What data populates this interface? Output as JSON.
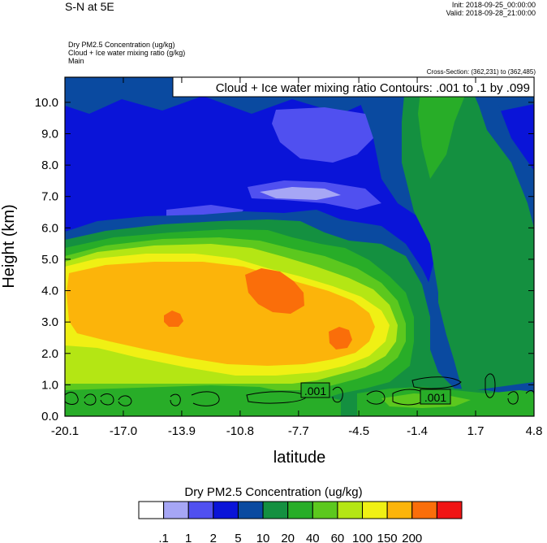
{
  "header": {
    "title": "S-N at 5E",
    "init": "Init: 2018-09-25_00:00:00",
    "valid": "Valid: 2018-09-28_21:00:00",
    "field1": "Dry PM2.5 Concentration   (ug/kg)",
    "field2": "Cloud + Ice water mixing ratio   (g/kg)",
    "field3": "Main",
    "cross_section": "Cross-Section: (362,231) to (362,485)"
  },
  "chart_data": {
    "type": "heatmap",
    "title": "S-N at 5E",
    "xlabel": "latitude",
    "ylabel": "Height (km)",
    "x_ticks": [
      "-20.1",
      "-17.0",
      "-13.9",
      "-10.8",
      "-7.7",
      "-4.5",
      "-1.4",
      "1.7",
      "4.8"
    ],
    "y_ticks": [
      "0.0",
      "1.0",
      "2.0",
      "3.0",
      "4.0",
      "5.0",
      "6.0",
      "7.0",
      "8.0",
      "9.0",
      "10.0"
    ],
    "xlim": [
      -20.1,
      4.8
    ],
    "ylim": [
      0.0,
      10.8
    ],
    "contour_info": "Cloud + Ice water mixing ratio Contours: .001 to .1 by .099",
    "contour_labels": [
      ".001",
      ".001"
    ],
    "colorbar_title": "Dry PM2.5 Concentration  (ug/kg)",
    "colorbar_levels": [
      ".1",
      "1",
      "2",
      "5",
      "10",
      "20",
      "40",
      "60",
      "100",
      "150",
      "200"
    ],
    "colorbar_colors": [
      "#ffffff",
      "#a6a6f5",
      "#5050f0",
      "#0a14d8",
      "#0a4aa0",
      "#149040",
      "#28ad28",
      "#5cc81e",
      "#b4e614",
      "#f0f014",
      "#fcb40a",
      "#fa6e0a",
      "#f01414"
    ],
    "field_levels_ugkg": [
      {
        "range": "1-2",
        "color": "#a6a6f5"
      },
      {
        "range": "2-5",
        "color": "#5050f0"
      },
      {
        "range": "5-10",
        "color": "#0a14d8"
      },
      {
        "range": "10-20",
        "color": "#0a4aa0"
      },
      {
        "range": "20-40",
        "color": "#149040"
      },
      {
        "range": "40-60",
        "color": "#28ad28"
      },
      {
        "range": "60-100",
        "color": "#5cc81e"
      },
      {
        "range": "100-150",
        "color": "#b4e614"
      },
      {
        "range": "150-200",
        "color": "#f0f014"
      },
      {
        "range": ">200",
        "color": "#fcb40a"
      }
    ]
  }
}
